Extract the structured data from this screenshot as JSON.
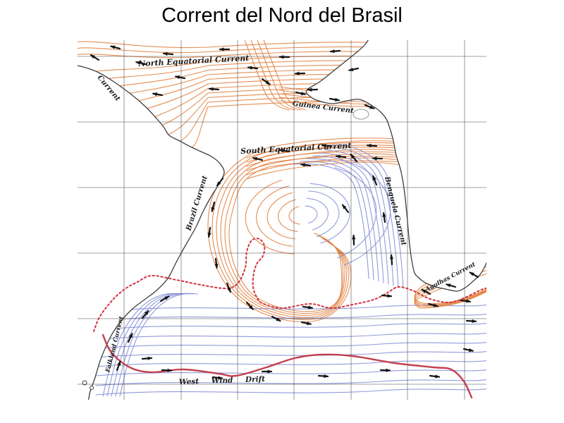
{
  "slide": {
    "title": "Corrent del Nord del Brasil",
    "background": "#ffffff"
  },
  "map": {
    "labels": {
      "north_equatorial": "North Equatorial Current",
      "guiana_partial": "Current",
      "guinea": "Guinea Current",
      "south_equatorial": "South Equatorial Current",
      "brazil": "Brazil Current",
      "benguela": "Benguela Current",
      "falkland": "Falkland Current",
      "agulhas": "Agulhas Current",
      "west_wind_drift": "West Wind Drift"
    },
    "colors": {
      "warm_current": "#e2813f",
      "cold_current": "#8690d8",
      "convergence_solid": "#c4404f",
      "convergence_dotted": "#d2333f",
      "coast": "#3d3d3d",
      "grid": "#4a4a4a",
      "arrow": "#141414",
      "label_text": "#1b1b1b"
    }
  }
}
